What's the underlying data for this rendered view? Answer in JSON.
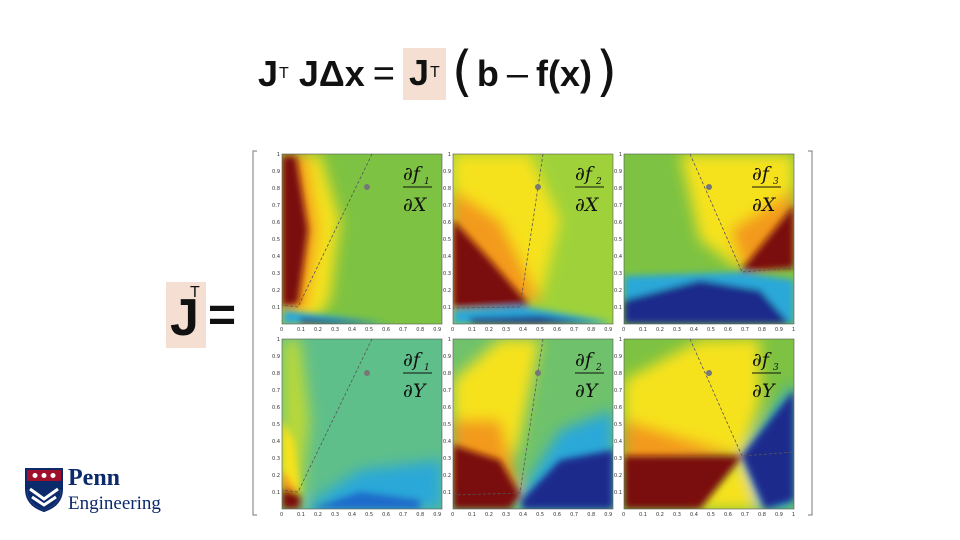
{
  "equation": {
    "J": "J",
    "T": "T",
    "delta_x": "Δx",
    "equals": "=",
    "lparen": "(",
    "b": "b",
    "minus": "–",
    "fx": "f(x)",
    "rparen": ")"
  },
  "jacobian_label": {
    "J": "J",
    "T": "T",
    "equals": "="
  },
  "colors": {
    "highlight": "#f5dfd3",
    "logo_blue": "#0b2a6b",
    "logo_red": "#a0102a"
  },
  "ticks": {
    "x_narrow": [
      "0",
      "0.1",
      "0.2",
      "0.3",
      "0.4",
      "0.5",
      "0.6",
      "0.7",
      "0.8",
      "0.9"
    ],
    "x_wide": [
      "0",
      "0.1",
      "0.2",
      "0.3",
      "0.4",
      "0.5",
      "0.6",
      "0.7",
      "0.8",
      "0.9",
      "1"
    ],
    "y": [
      "0.1",
      "0.2",
      "0.3",
      "0.4",
      "0.5",
      "0.6",
      "0.7",
      "0.8",
      "0.9",
      "1"
    ]
  },
  "panels": [
    {
      "num": "∂f",
      "sub": "1",
      "den": "∂X"
    },
    {
      "num": "∂f",
      "sub": "2",
      "den": "∂X"
    },
    {
      "num": "∂f",
      "sub": "3",
      "den": "∂X"
    },
    {
      "num": "∂f",
      "sub": "1",
      "den": "∂Y"
    },
    {
      "num": "∂f",
      "sub": "2",
      "den": "∂Y"
    },
    {
      "num": "∂f",
      "sub": "3",
      "den": "∂Y"
    }
  ],
  "logo": {
    "name": "Penn",
    "school": "Engineering",
    "icon": "shield-icon"
  }
}
